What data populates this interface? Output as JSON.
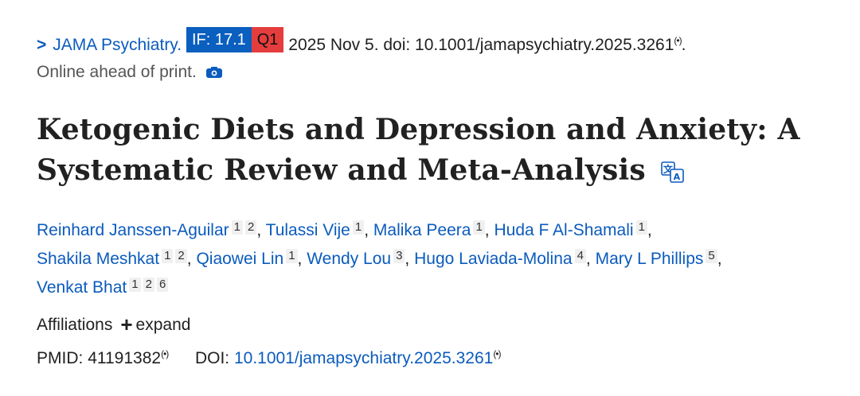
{
  "citation": {
    "chevron": ">",
    "journal": "JAMA Psychiatry.",
    "impact_factor": "IF: 17.1",
    "quartile": "Q1",
    "date_doi": "2025 Nov 5. doi: 10.1001/jamapsychiatry.2025.3261",
    "radio_symbol": "(•)",
    "trailing_period": ".",
    "status": "Online ahead of print."
  },
  "article": {
    "title_line1": "Ketogenic Diets and Depression and Anxiety: A",
    "title_line2": "Systematic Review and Meta-Analysis"
  },
  "authors": [
    {
      "name": "Reinhard Janssen-Aguilar",
      "affiliations": [
        "1",
        "2"
      ]
    },
    {
      "name": "Tulassi Vije",
      "affiliations": [
        "1"
      ]
    },
    {
      "name": "Malika Peera",
      "affiliations": [
        "1"
      ]
    },
    {
      "name": "Huda F Al-Shamali",
      "affiliations": [
        "1"
      ]
    },
    {
      "name": "Shakila Meshkat",
      "affiliations": [
        "1",
        "2"
      ]
    },
    {
      "name": "Qiaowei Lin",
      "affiliations": [
        "1"
      ]
    },
    {
      "name": "Wendy Lou",
      "affiliations": [
        "3"
      ]
    },
    {
      "name": "Hugo Laviada-Molina",
      "affiliations": [
        "4"
      ]
    },
    {
      "name": "Mary L Phillips",
      "affiliations": [
        "5"
      ]
    },
    {
      "name": "Venkat Bhat",
      "affiliations": [
        "1",
        "2",
        "6"
      ]
    }
  ],
  "affiliations_section": {
    "label": "Affiliations",
    "toggle_symbol": "+",
    "toggle_label": "expand"
  },
  "identifiers": {
    "pmid_label": "PMID:",
    "pmid_value": "41191382",
    "doi_label": "DOI:",
    "doi_value": "10.1001/jamapsychiatry.2025.3261",
    "radio_symbol": "(•)"
  },
  "colors": {
    "link": "#0b5bbd",
    "if_badge": "#0a5fbf",
    "quartile_badge": "#e53d3d"
  }
}
